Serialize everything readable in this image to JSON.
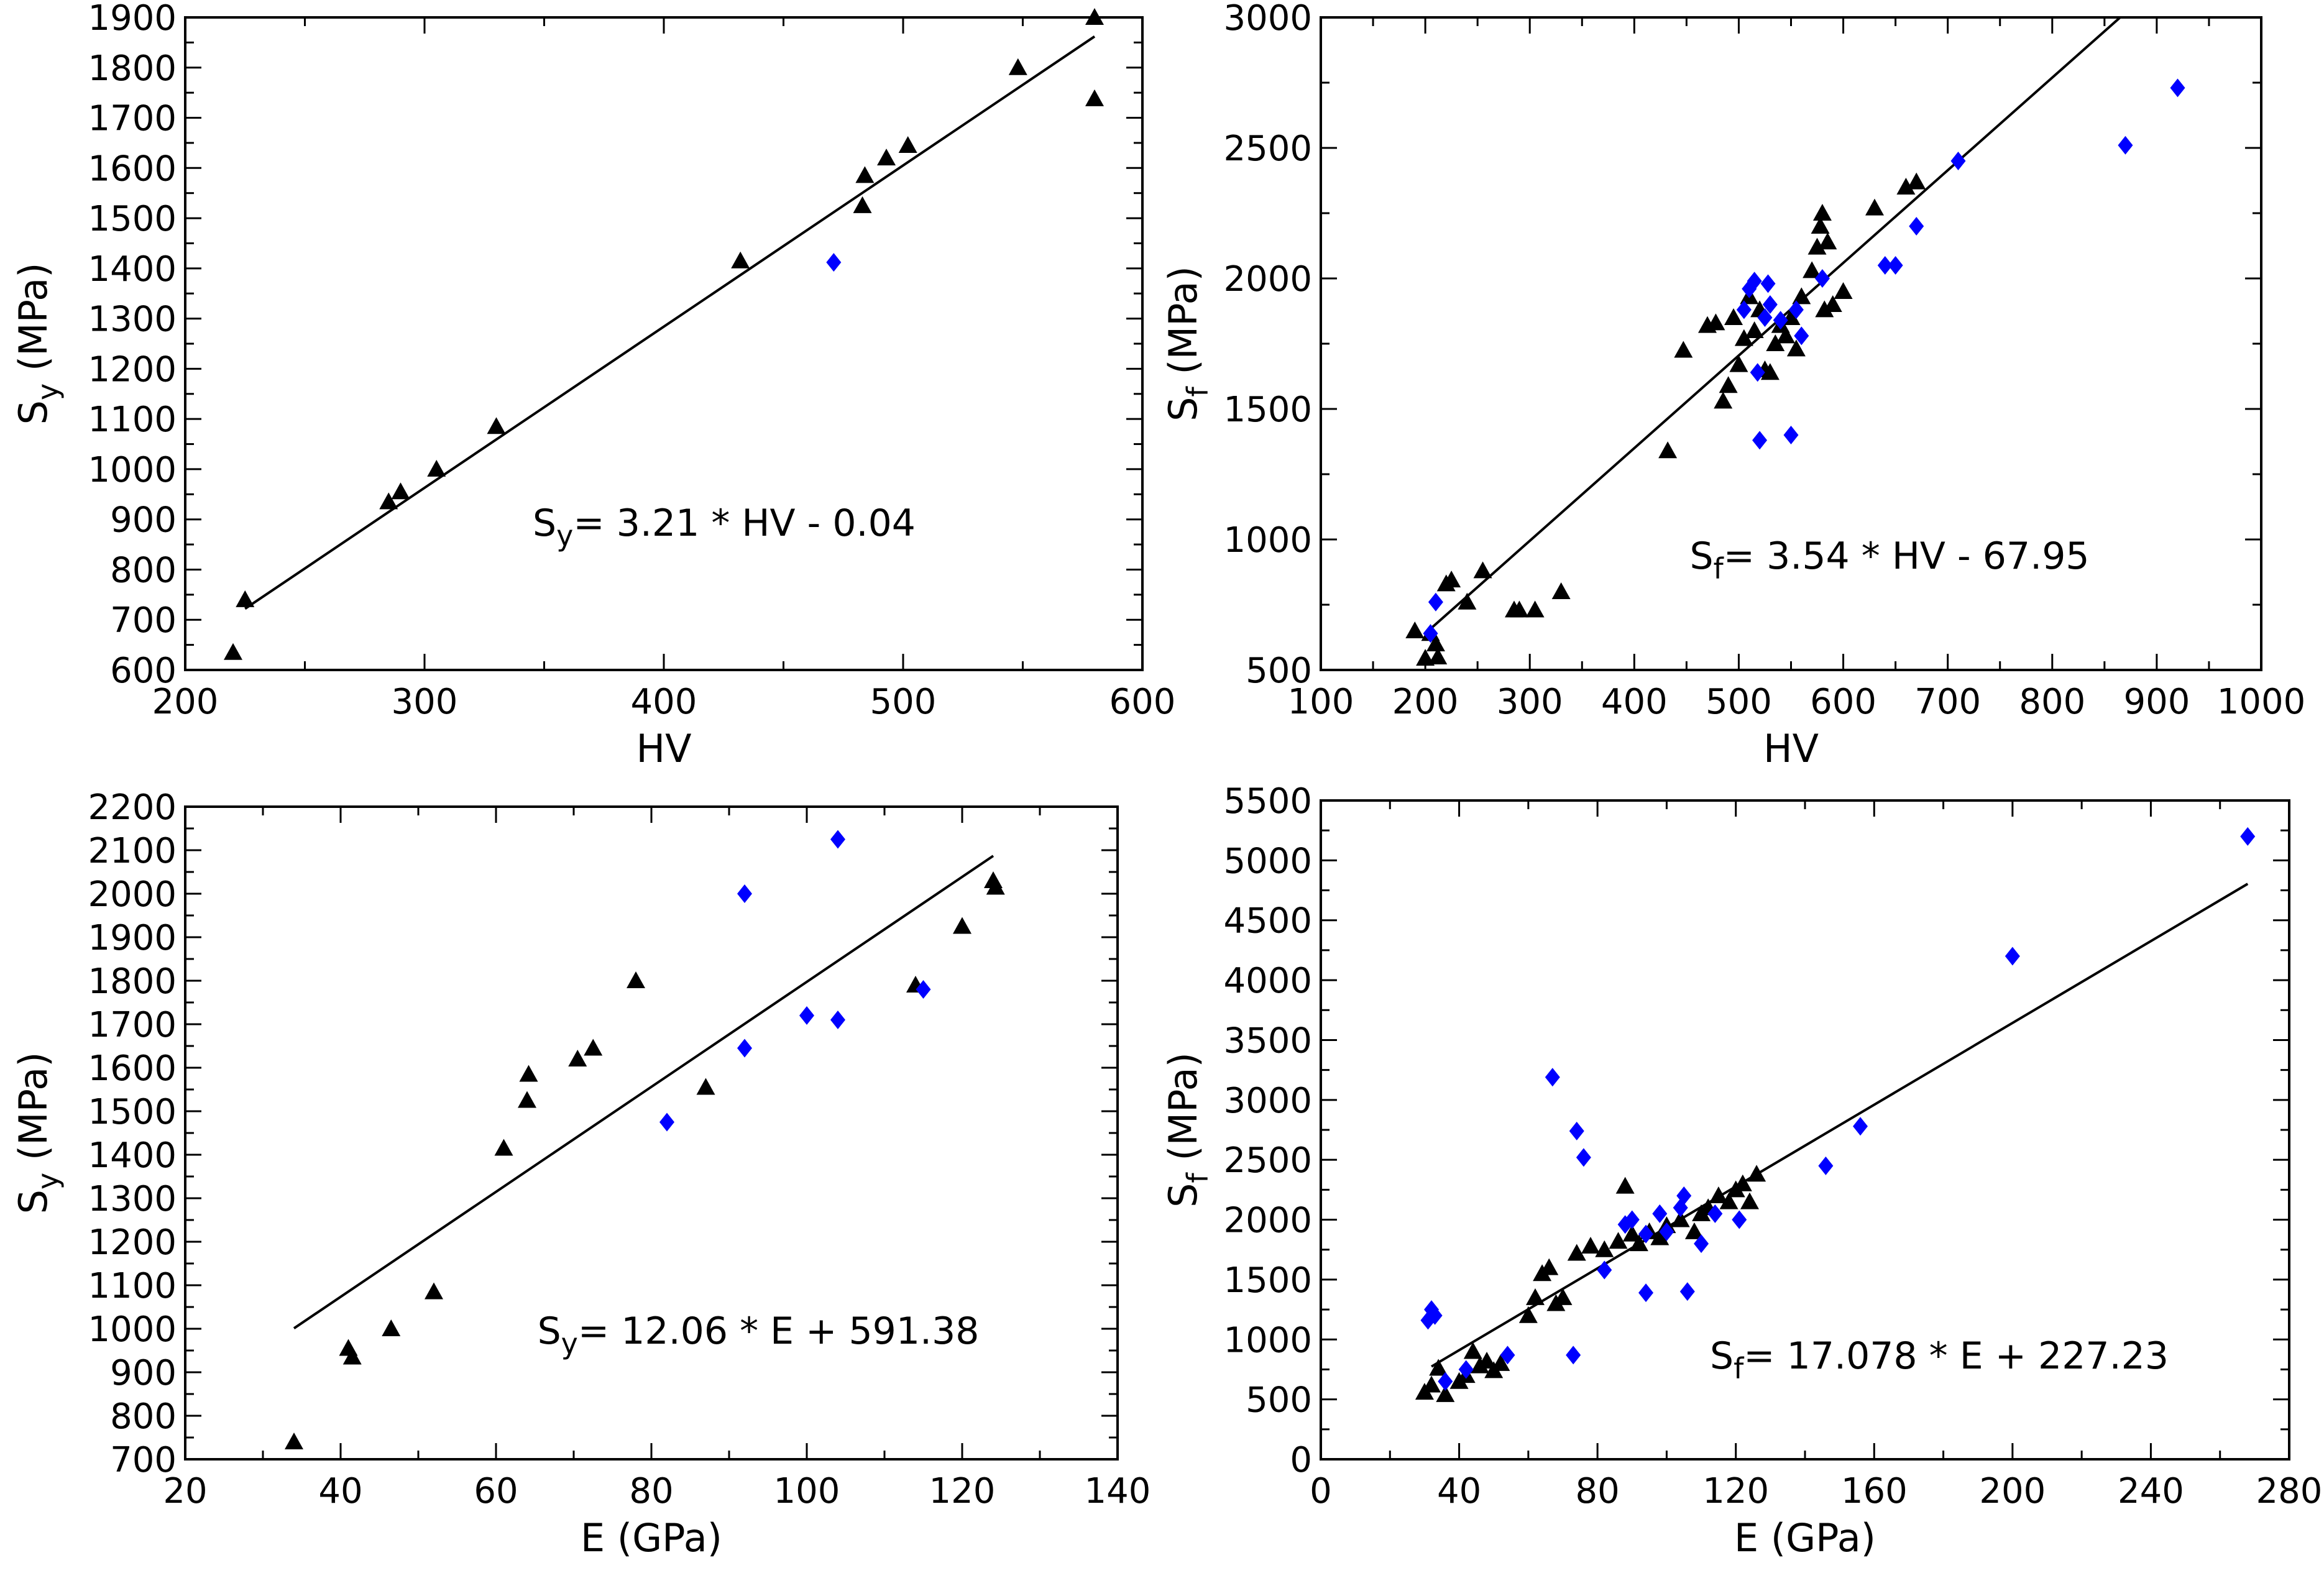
{
  "chart_data": [
    {
      "id": "top-left",
      "type": "scatter",
      "xlabel": "HV",
      "ylabel": "S",
      "ylabel_sub": "y",
      "ylabel_unit": " (MPa)",
      "xlim": [
        200,
        600
      ],
      "ylim": [
        600,
        1900
      ],
      "xticks": [
        200,
        300,
        400,
        500,
        600
      ],
      "yticks": [
        600,
        700,
        800,
        900,
        1000,
        1100,
        1200,
        1300,
        1400,
        1500,
        1600,
        1700,
        1800,
        1900
      ],
      "equation": {
        "var": "S",
        "sub": "y",
        "rest": "= 3.21 * HV - 0.04"
      },
      "fit": {
        "x": [
          225,
          580
        ],
        "y": [
          722,
          1862
        ]
      },
      "series": [
        {
          "name": "triangle",
          "color": "#000000",
          "marker": "triangle",
          "x": [
            220,
            225,
            285,
            290,
            305,
            330,
            432,
            483,
            484,
            493,
            502,
            548,
            580,
            580
          ],
          "y": [
            635,
            740,
            935,
            955,
            1000,
            1085,
            1415,
            1525,
            1585,
            1620,
            1645,
            1800,
            1900,
            1738
          ]
        },
        {
          "name": "diamond",
          "color": "#0000ff",
          "marker": "diamond",
          "x": [
            471
          ],
          "y": [
            1412
          ]
        }
      ]
    },
    {
      "id": "top-right",
      "type": "scatter",
      "xlabel": "HV",
      "ylabel": "S",
      "ylabel_sub": "f",
      "ylabel_unit": " (MPa)",
      "xlim": [
        100,
        1000
      ],
      "ylim": [
        500,
        3000
      ],
      "xticks": [
        100,
        200,
        300,
        400,
        500,
        600,
        700,
        800,
        900,
        1000
      ],
      "yticks": [
        500,
        1000,
        1500,
        2000,
        2500,
        3000
      ],
      "equation": {
        "var": "S",
        "sub": "f",
        "rest": "= 3.54 * HV - 67.95"
      },
      "fit": {
        "x": [
          200,
          865
        ],
        "y": [
          640,
          3000
        ]
      },
      "series": [
        {
          "name": "triangle",
          "color": "#000000",
          "marker": "triangle",
          "x": [
            190,
            200,
            205,
            210,
            212,
            220,
            225,
            240,
            255,
            285,
            290,
            305,
            330,
            432,
            447,
            470,
            478,
            485,
            490,
            495,
            500,
            505,
            510,
            515,
            520,
            525,
            530,
            535,
            540,
            545,
            550,
            555,
            560,
            570,
            575,
            578,
            580,
            582,
            585,
            590,
            600,
            630,
            660,
            670
          ],
          "y": [
            650,
            545,
            640,
            600,
            550,
            830,
            845,
            760,
            880,
            730,
            730,
            730,
            800,
            1340,
            1725,
            1820,
            1830,
            1530,
            1590,
            1850,
            1670,
            1770,
            1930,
            1800,
            1880,
            1650,
            1640,
            1750,
            1820,
            1780,
            1850,
            1730,
            1930,
            2030,
            2120,
            2200,
            2250,
            1880,
            2140,
            1900,
            1950,
            2270,
            2350,
            2370
          ]
        },
        {
          "name": "diamond",
          "color": "#0000ff",
          "marker": "diamond",
          "x": [
            205,
            210,
            505,
            510,
            515,
            518,
            520,
            525,
            528,
            530,
            540,
            550,
            555,
            560,
            580,
            640,
            650,
            670,
            710,
            870,
            920
          ],
          "y": [
            640,
            760,
            1880,
            1960,
            1990,
            1640,
            1380,
            1850,
            1980,
            1900,
            1840,
            1400,
            1880,
            1780,
            2000,
            2050,
            2050,
            2200,
            2450,
            2510,
            2730
          ]
        }
      ]
    },
    {
      "id": "bottom-left",
      "type": "scatter",
      "xlabel": "E (GPa)",
      "ylabel": "S",
      "ylabel_sub": "y",
      "ylabel_unit": " (MPa)",
      "xlim": [
        20,
        140
      ],
      "ylim": [
        700,
        2200
      ],
      "xticks": [
        20,
        40,
        60,
        80,
        100,
        120,
        140
      ],
      "yticks": [
        700,
        800,
        900,
        1000,
        1100,
        1200,
        1300,
        1400,
        1500,
        1600,
        1700,
        1800,
        1900,
        2000,
        2100,
        2200
      ],
      "equation": {
        "var": "S",
        "sub": "y",
        "rest": "= 12.06 * E + 591.38"
      },
      "fit": {
        "x": [
          34,
          124
        ],
        "y": [
          1001,
          2087
        ]
      },
      "series": [
        {
          "name": "triangle",
          "color": "#000000",
          "marker": "triangle",
          "x": [
            34,
            41,
            41.5,
            46.5,
            52,
            61,
            64,
            64.2,
            70.5,
            72.5,
            78,
            87,
            114,
            120,
            124,
            124.3
          ],
          "y": [
            740,
            955,
            935,
            1000,
            1085,
            1415,
            1525,
            1585,
            1620,
            1645,
            1800,
            1555,
            1790,
            1925,
            2030,
            2015
          ]
        },
        {
          "name": "diamond",
          "color": "#0000ff",
          "marker": "diamond",
          "x": [
            82,
            92,
            92,
            100,
            104,
            104,
            115
          ],
          "y": [
            1475,
            2000,
            1645,
            1720,
            2125,
            1710,
            1780
          ]
        }
      ]
    },
    {
      "id": "bottom-right",
      "type": "scatter",
      "xlabel": "E (GPa)",
      "ylabel": "S",
      "ylabel_sub": "f",
      "ylabel_unit": " (MPa)",
      "xlim": [
        0,
        280
      ],
      "ylim": [
        0,
        5500
      ],
      "xticks": [
        0,
        40,
        80,
        120,
        160,
        200,
        240,
        280
      ],
      "yticks": [
        0,
        500,
        1000,
        1500,
        2000,
        2500,
        3000,
        3500,
        4000,
        4500,
        5000,
        5500
      ],
      "equation": {
        "var": "S",
        "sub": "f",
        "rest": "= 17.078 * E + 227.23"
      },
      "fit": {
        "x": [
          32,
          268
        ],
        "y": [
          774,
          4804
        ]
      },
      "series": [
        {
          "name": "triangle",
          "color": "#000000",
          "marker": "triangle",
          "x": [
            30,
            32,
            34,
            36,
            40,
            42,
            44,
            46,
            48,
            50,
            52,
            60,
            62,
            64,
            66,
            68,
            70,
            74,
            78,
            82,
            86,
            88,
            90,
            92,
            95,
            98,
            100,
            104,
            108,
            110,
            112,
            115,
            118,
            120,
            122,
            124,
            126
          ],
          "y": [
            560,
            620,
            760,
            540,
            650,
            700,
            900,
            780,
            820,
            740,
            800,
            1200,
            1350,
            1550,
            1600,
            1300,
            1350,
            1720,
            1780,
            1750,
            1820,
            2280,
            1880,
            1800,
            1900,
            1850,
            1950,
            2000,
            1900,
            2050,
            2100,
            2200,
            2150,
            2250,
            2300,
            2150,
            2380
          ]
        },
        {
          "name": "diamond",
          "color": "#0000ff",
          "marker": "diamond",
          "x": [
            31,
            32,
            33,
            36,
            42,
            54,
            67,
            73,
            74,
            76,
            82,
            88,
            90,
            94,
            94,
            98,
            100,
            104,
            105,
            106,
            110,
            114,
            121,
            146,
            156,
            200,
            268
          ],
          "y": [
            1160,
            1250,
            1200,
            650,
            750,
            870,
            3190,
            870,
            2740,
            2520,
            1580,
            1960,
            2000,
            1880,
            1390,
            2050,
            1900,
            2100,
            2200,
            1400,
            1800,
            2050,
            2000,
            2450,
            2780,
            4200,
            5200
          ]
        }
      ]
    }
  ]
}
